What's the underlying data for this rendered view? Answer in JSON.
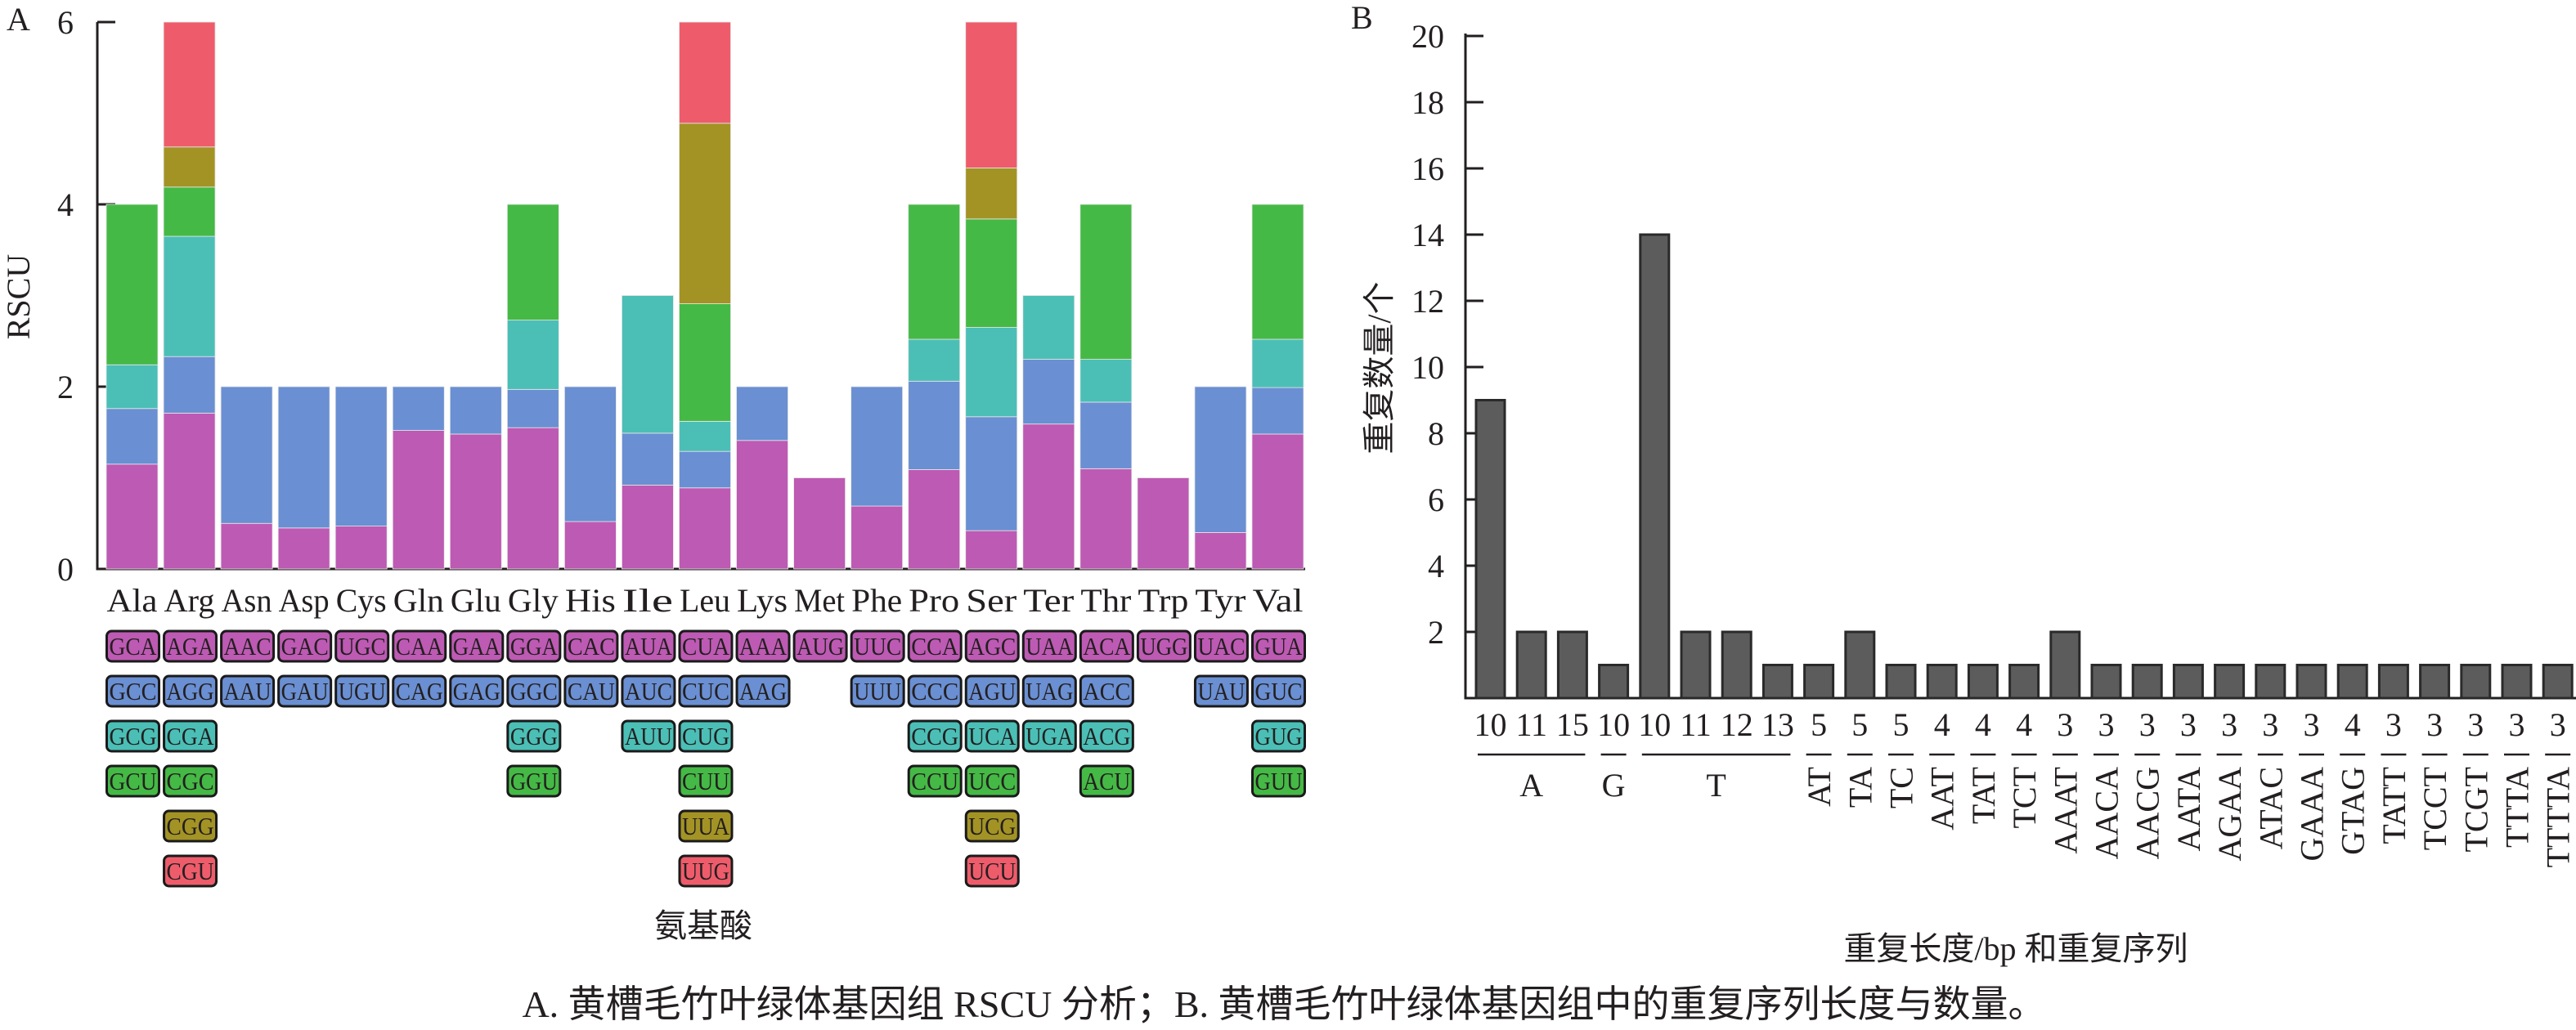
{
  "figure": {
    "caption": "A. 黄槽毛竹叶绿体基因组 RSCU 分析；B. 黄槽毛竹叶绿体基因组中的重复序列长度与数量。"
  },
  "colors": {
    "layer1": "#bd5ab3",
    "layer2": "#6a8fd2",
    "layer3": "#4bbfb6",
    "layer4": "#45b945",
    "layer5": "#a39325",
    "layer6": "#ee5c6b",
    "barB": "#5c5c5c",
    "axis": "#231f20"
  },
  "chart_data": [
    {
      "type": "bar",
      "stacked": true,
      "panel_label": "A",
      "title": "",
      "xlabel": "氨基酸",
      "ylabel": "RSCU",
      "ylim": [
        0,
        6
      ],
      "yticks": [
        "0",
        "2",
        "4",
        "6"
      ],
      "categories": [
        "Ala",
        "Arg",
        "Asn",
        "Asp",
        "Cys",
        "Gln",
        "Glu",
        "Gly",
        "His",
        "Ile",
        "Leu",
        "Lys",
        "Met",
        "Phe",
        "Pro",
        "Ser",
        "Ter",
        "Thr",
        "Trp",
        "Tyr",
        "Val"
      ],
      "stacks": [
        [
          {
            "codon": "GCA",
            "value": 1.15
          },
          {
            "codon": "GCC",
            "value": 0.61
          },
          {
            "codon": "GCG",
            "value": 0.48
          },
          {
            "codon": "GCU",
            "value": 1.76
          }
        ],
        [
          {
            "codon": "AGA",
            "value": 1.71
          },
          {
            "codon": "AGG",
            "value": 0.62
          },
          {
            "codon": "CGA",
            "value": 1.32
          },
          {
            "codon": "CGC",
            "value": 0.54
          },
          {
            "codon": "CGG",
            "value": 0.44
          },
          {
            "codon": "CGU",
            "value": 1.37
          }
        ],
        [
          {
            "codon": "AAC",
            "value": 0.5
          },
          {
            "codon": "AAU",
            "value": 1.5
          }
        ],
        [
          {
            "codon": "GAC",
            "value": 0.45
          },
          {
            "codon": "GAU",
            "value": 1.55
          }
        ],
        [
          {
            "codon": "UGC",
            "value": 0.47
          },
          {
            "codon": "UGU",
            "value": 1.53
          }
        ],
        [
          {
            "codon": "CAA",
            "value": 1.52
          },
          {
            "codon": "CAG",
            "value": 0.48
          }
        ],
        [
          {
            "codon": "GAA",
            "value": 1.48
          },
          {
            "codon": "GAG",
            "value": 0.52
          }
        ],
        [
          {
            "codon": "GGA",
            "value": 1.55
          },
          {
            "codon": "GGC",
            "value": 0.42
          },
          {
            "codon": "GGG",
            "value": 0.76
          },
          {
            "codon": "GGU",
            "value": 1.27
          }
        ],
        [
          {
            "codon": "CAC",
            "value": 0.52
          },
          {
            "codon": "CAU",
            "value": 1.48
          }
        ],
        [
          {
            "codon": "AUA",
            "value": 0.92
          },
          {
            "codon": "AUC",
            "value": 0.57
          },
          {
            "codon": "AUU",
            "value": 1.51
          }
        ],
        [
          {
            "codon": "CUA",
            "value": 0.89
          },
          {
            "codon": "CUC",
            "value": 0.4
          },
          {
            "codon": "CUG",
            "value": 0.33
          },
          {
            "codon": "CUU",
            "value": 1.29
          },
          {
            "codon": "UUA",
            "value": 1.98
          },
          {
            "codon": "UUG",
            "value": 1.11
          }
        ],
        [
          {
            "codon": "AAA",
            "value": 1.41
          },
          {
            "codon": "AAG",
            "value": 0.59
          }
        ],
        [
          {
            "codon": "AUG",
            "value": 1.0
          }
        ],
        [
          {
            "codon": "UUC",
            "value": 0.69
          },
          {
            "codon": "UUU",
            "value": 1.31
          }
        ],
        [
          {
            "codon": "CCA",
            "value": 1.09
          },
          {
            "codon": "CCC",
            "value": 0.97
          },
          {
            "codon": "CCG",
            "value": 0.46
          },
          {
            "codon": "CCU",
            "value": 1.48
          }
        ],
        [
          {
            "codon": "AGC",
            "value": 0.42
          },
          {
            "codon": "AGU",
            "value": 1.25
          },
          {
            "codon": "UCA",
            "value": 0.98
          },
          {
            "codon": "UCC",
            "value": 1.19
          },
          {
            "codon": "UCG",
            "value": 0.56
          },
          {
            "codon": "UCU",
            "value": 1.6
          }
        ],
        [
          {
            "codon": "UAA",
            "value": 1.59
          },
          {
            "codon": "UAG",
            "value": 0.71
          },
          {
            "codon": "UGA",
            "value": 0.7
          }
        ],
        [
          {
            "codon": "ACA",
            "value": 1.1
          },
          {
            "codon": "ACC",
            "value": 0.73
          },
          {
            "codon": "ACG",
            "value": 0.47
          },
          {
            "codon": "ACU",
            "value": 1.7
          }
        ],
        [
          {
            "codon": "UGG",
            "value": 1.0
          }
        ],
        [
          {
            "codon": "UAC",
            "value": 0.4
          },
          {
            "codon": "UAU",
            "value": 1.6
          }
        ],
        [
          {
            "codon": "GUA",
            "value": 1.48
          },
          {
            "codon": "GUC",
            "value": 0.51
          },
          {
            "codon": "GUG",
            "value": 0.53
          },
          {
            "codon": "GUU",
            "value": 1.48
          }
        ]
      ]
    },
    {
      "type": "bar",
      "panel_label": "B",
      "title": "",
      "xlabel": "重复长度/bp 和重复序列",
      "ylabel": "重复数量/个",
      "ylim": [
        0,
        20
      ],
      "yticks": [
        "2",
        "4",
        "6",
        "8",
        "10",
        "12",
        "14",
        "16",
        "18",
        "20"
      ],
      "lengths": [
        "10",
        "11",
        "15",
        "10",
        "10",
        "11",
        "12",
        "13",
        "5",
        "5",
        "5",
        "4",
        "4",
        "4",
        "3",
        "3",
        "3",
        "3",
        "3",
        "3",
        "3",
        "4",
        "3",
        "3",
        "3",
        "3",
        "3"
      ],
      "values": [
        9,
        2,
        2,
        1,
        14,
        2,
        2,
        1,
        1,
        2,
        1,
        1,
        1,
        1,
        2,
        1,
        1,
        1,
        1,
        1,
        1,
        1,
        1,
        1,
        1,
        1,
        1
      ],
      "groups": [
        {
          "label": "A",
          "count": 3,
          "rotated": false
        },
        {
          "label": "G",
          "count": 1,
          "rotated": false
        },
        {
          "label": "T",
          "count": 4,
          "rotated": false
        },
        {
          "label": "AT",
          "count": 1,
          "rotated": true
        },
        {
          "label": "TA",
          "count": 1,
          "rotated": true
        },
        {
          "label": "TC",
          "count": 1,
          "rotated": true
        },
        {
          "label": "AAT",
          "count": 1,
          "rotated": true
        },
        {
          "label": "TAT",
          "count": 1,
          "rotated": true
        },
        {
          "label": "TCT",
          "count": 1,
          "rotated": true
        },
        {
          "label": "AAAT",
          "count": 1,
          "rotated": true
        },
        {
          "label": "AACA",
          "count": 1,
          "rotated": true
        },
        {
          "label": "AACG",
          "count": 1,
          "rotated": true
        },
        {
          "label": "AATA",
          "count": 1,
          "rotated": true
        },
        {
          "label": "AGAA",
          "count": 1,
          "rotated": true
        },
        {
          "label": "ATAC",
          "count": 1,
          "rotated": true
        },
        {
          "label": "GAAA",
          "count": 1,
          "rotated": true
        },
        {
          "label": "GTAG",
          "count": 1,
          "rotated": true
        },
        {
          "label": "TATT",
          "count": 1,
          "rotated": true
        },
        {
          "label": "TCCT",
          "count": 1,
          "rotated": true
        },
        {
          "label": "TCGT",
          "count": 1,
          "rotated": true
        },
        {
          "label": "TTTA",
          "count": 1,
          "rotated": true
        },
        {
          "label": "TTTTA",
          "count": 1,
          "rotated": true
        }
      ]
    }
  ]
}
